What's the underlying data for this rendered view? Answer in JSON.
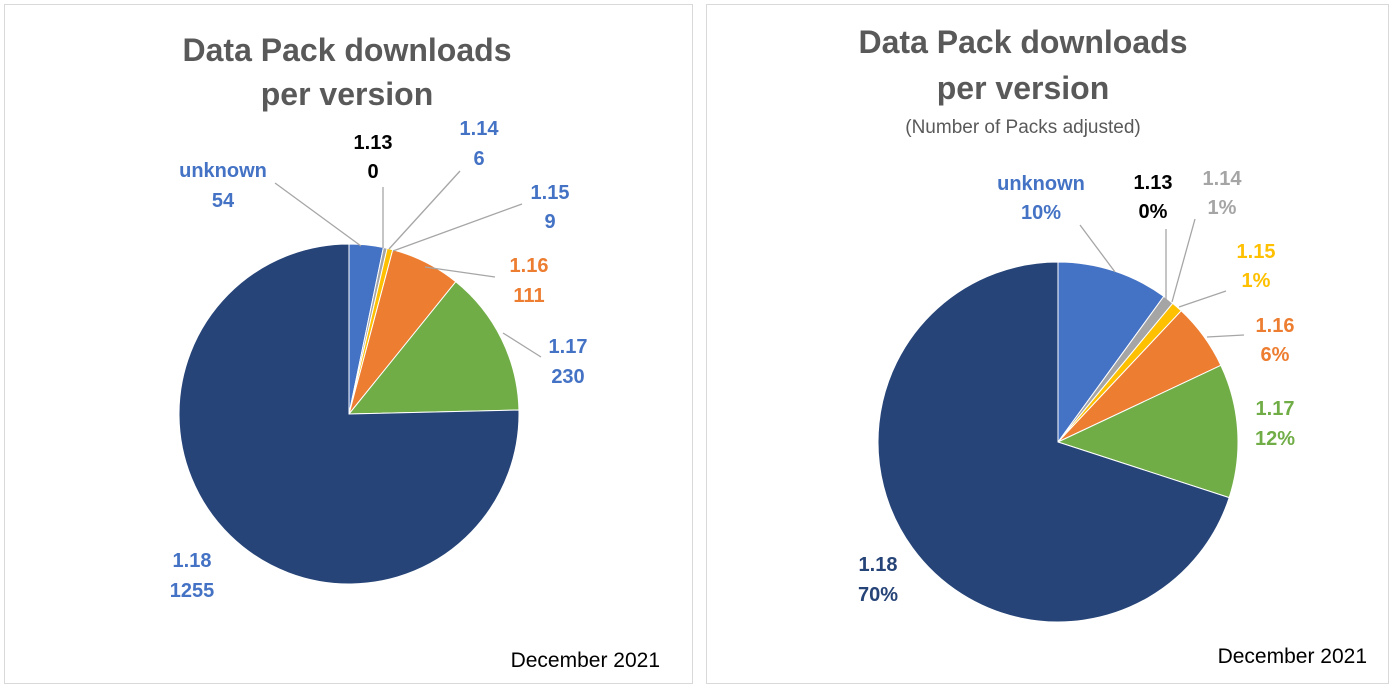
{
  "colors": {
    "unknown": "#4472c4",
    "1.13": "#000000",
    "1.14": "#a5a5a5",
    "1.15": "#ffc000",
    "1.16": "#ed7d31",
    "1.17": "#70ad47",
    "1.18": "#264478"
  },
  "chart_data": [
    {
      "type": "pie",
      "title": "Data Pack downloads per version",
      "title_lines": [
        "Data Pack downloads",
        "per version"
      ],
      "subtitle": "",
      "footer": "December 2021",
      "categories": [
        "unknown",
        "1.13",
        "1.14",
        "1.15",
        "1.16",
        "1.17",
        "1.18"
      ],
      "values": [
        54,
        0,
        6,
        9,
        111,
        230,
        1255
      ],
      "value_labels": [
        "54",
        "0",
        "6",
        "9",
        "111",
        "230",
        "1255"
      ],
      "label_colors": [
        "#4472c4",
        "#000000",
        "#4472c4",
        "#4472c4",
        "#ed7d31",
        "#4472c4",
        "#4472c4"
      ]
    },
    {
      "type": "pie",
      "title": "Data Pack downloads per version",
      "title_lines": [
        "Data Pack downloads",
        "per version"
      ],
      "subtitle": "(Number of Packs adjusted)",
      "footer": "December 2021",
      "categories": [
        "unknown",
        "1.13",
        "1.14",
        "1.15",
        "1.16",
        "1.17",
        "1.18"
      ],
      "values": [
        10,
        0,
        1,
        1,
        6,
        12,
        70
      ],
      "value_labels": [
        "10%",
        "0%",
        "1%",
        "1%",
        "6%",
        "12%",
        "70%"
      ],
      "label_colors": [
        "#4472c4",
        "#000000",
        "#a5a5a5",
        "#ffc000",
        "#ed7d31",
        "#70ad47",
        "#264478"
      ]
    }
  ]
}
